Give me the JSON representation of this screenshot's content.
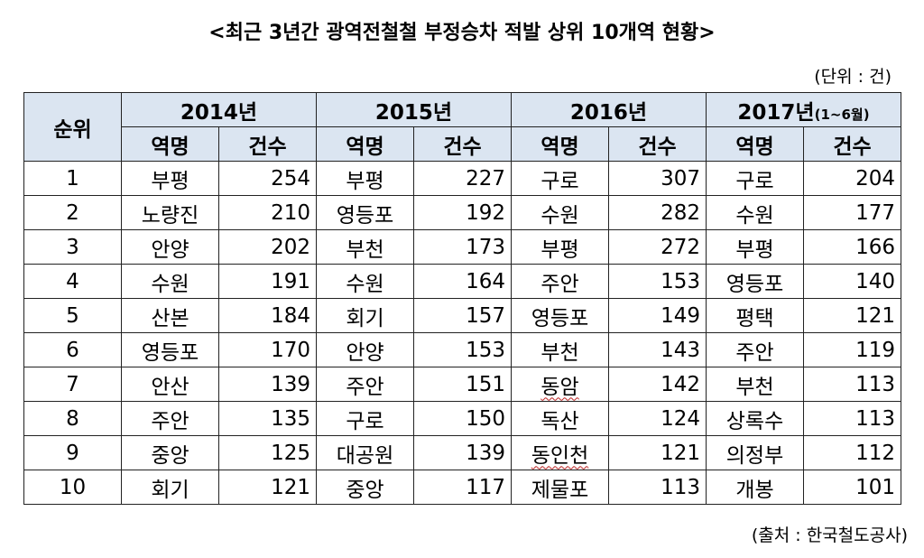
{
  "title": "<최근 3년간 광역전철철 부정승차 적발 상위 10개역 현황>",
  "unit": "(단위 : 건)",
  "source": "(출처 : 한국철도공사)",
  "headers": {
    "rank": "순위",
    "station": "역명",
    "count": "건수",
    "years": [
      {
        "label": "2014년",
        "note": ""
      },
      {
        "label": "2015년",
        "note": ""
      },
      {
        "label": "2016년",
        "note": ""
      },
      {
        "label": "2017년",
        "note": "(1~6월)"
      }
    ]
  },
  "rows": [
    {
      "rank": "1",
      "cells": [
        {
          "name": "부평",
          "count": "254"
        },
        {
          "name": "부평",
          "count": "227"
        },
        {
          "name": "구로",
          "count": "307"
        },
        {
          "name": "구로",
          "count": "204"
        }
      ]
    },
    {
      "rank": "2",
      "cells": [
        {
          "name": "노량진",
          "count": "210"
        },
        {
          "name": "영등포",
          "count": "192"
        },
        {
          "name": "수원",
          "count": "282"
        },
        {
          "name": "수원",
          "count": "177"
        }
      ]
    },
    {
      "rank": "3",
      "cells": [
        {
          "name": "안양",
          "count": "202"
        },
        {
          "name": "부천",
          "count": "173"
        },
        {
          "name": "부평",
          "count": "272"
        },
        {
          "name": "부평",
          "count": "166"
        }
      ]
    },
    {
      "rank": "4",
      "cells": [
        {
          "name": "수원",
          "count": "191"
        },
        {
          "name": "수원",
          "count": "164"
        },
        {
          "name": "주안",
          "count": "153"
        },
        {
          "name": "영등포",
          "count": "140"
        }
      ]
    },
    {
      "rank": "5",
      "cells": [
        {
          "name": "산본",
          "count": "184"
        },
        {
          "name": "회기",
          "count": "157"
        },
        {
          "name": "영등포",
          "count": "149"
        },
        {
          "name": "평택",
          "count": "121"
        }
      ]
    },
    {
      "rank": "6",
      "cells": [
        {
          "name": "영등포",
          "count": "170"
        },
        {
          "name": "안양",
          "count": "153"
        },
        {
          "name": "부천",
          "count": "143"
        },
        {
          "name": "주안",
          "count": "119"
        }
      ]
    },
    {
      "rank": "7",
      "cells": [
        {
          "name": "안산",
          "count": "139"
        },
        {
          "name": "주안",
          "count": "151"
        },
        {
          "name": "동암",
          "count": "142"
        },
        {
          "name": "부천",
          "count": "113"
        }
      ]
    },
    {
      "rank": "8",
      "cells": [
        {
          "name": "주안",
          "count": "135"
        },
        {
          "name": "구로",
          "count": "150"
        },
        {
          "name": "독산",
          "count": "124"
        },
        {
          "name": "상록수",
          "count": "113"
        }
      ]
    },
    {
      "rank": "9",
      "cells": [
        {
          "name": "중앙",
          "count": "125"
        },
        {
          "name": "대공원",
          "count": "139"
        },
        {
          "name": "동인천",
          "count": "121"
        },
        {
          "name": "의정부",
          "count": "112"
        }
      ]
    },
    {
      "rank": "10",
      "cells": [
        {
          "name": "회기",
          "count": "121"
        },
        {
          "name": "중앙",
          "count": "117"
        },
        {
          "name": "제물포",
          "count": "113"
        },
        {
          "name": "개봉",
          "count": "101"
        }
      ]
    }
  ],
  "colors": {
    "header_bg": "#dbe5f1",
    "border": "#222222"
  }
}
